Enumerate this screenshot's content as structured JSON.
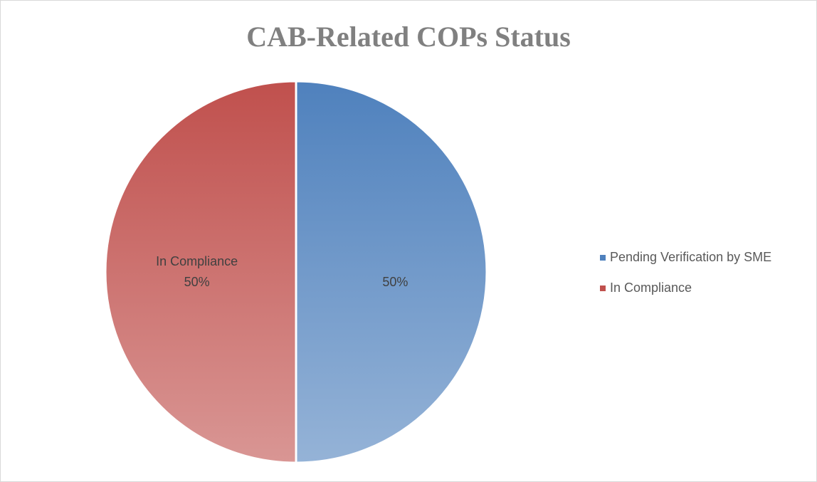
{
  "chart_data": {
    "type": "pie",
    "title": "CAB-Related COPs Status",
    "categories": [
      "Pending Verification by SME",
      "In Compliance"
    ],
    "values": [
      50,
      50
    ],
    "value_labels": [
      "50%",
      "50%"
    ],
    "label_shows_category": [
      false,
      true
    ],
    "colors": [
      "#4f81bd",
      "#c0504d"
    ],
    "legend": "right"
  }
}
